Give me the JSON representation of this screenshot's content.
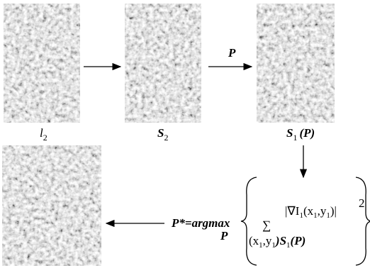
{
  "nodes": [
    {
      "label": "l",
      "subscript": "2"
    },
    {
      "label": "S",
      "subscript": "2"
    },
    {
      "label": "S",
      "subscript": "1",
      "argument": "(P)"
    }
  ],
  "arrow_label": "P",
  "formula": {
    "lhs": "P*=argmax",
    "under": "P",
    "sum": "∑",
    "sum_index": [
      "(x",
      "1",
      ",y",
      "1",
      ")S",
      "1",
      "(P)"
    ],
    "term": [
      "|∇I",
      "1",
      "(x",
      "1",
      ",y",
      "1",
      ")|"
    ],
    "power": "2"
  }
}
